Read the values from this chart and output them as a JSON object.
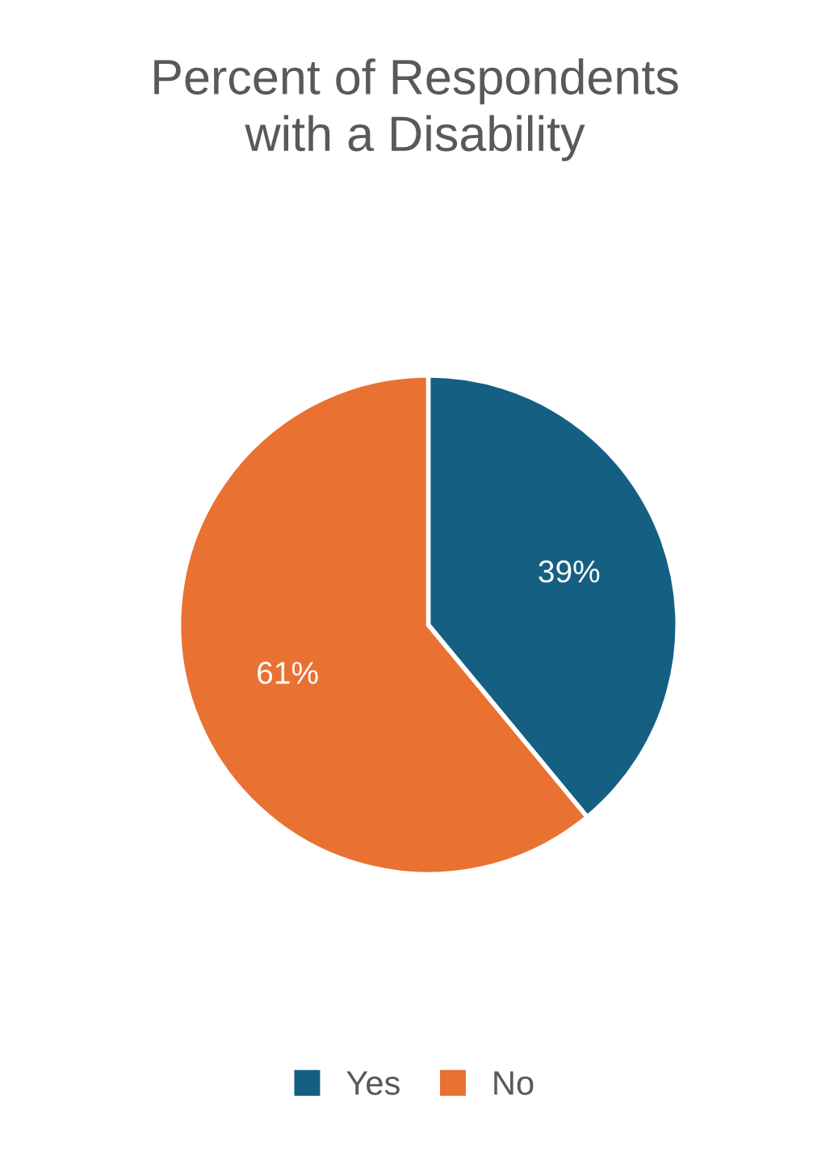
{
  "chart_data": {
    "type": "pie",
    "title": "Percent of Respondents\nwith a Disability",
    "categories": [
      "Yes",
      "No"
    ],
    "values": [
      39,
      61
    ],
    "colors": [
      "#156082",
      "#e97132"
    ],
    "value_labels": [
      "39%",
      "61%"
    ],
    "legend": "bottom"
  }
}
